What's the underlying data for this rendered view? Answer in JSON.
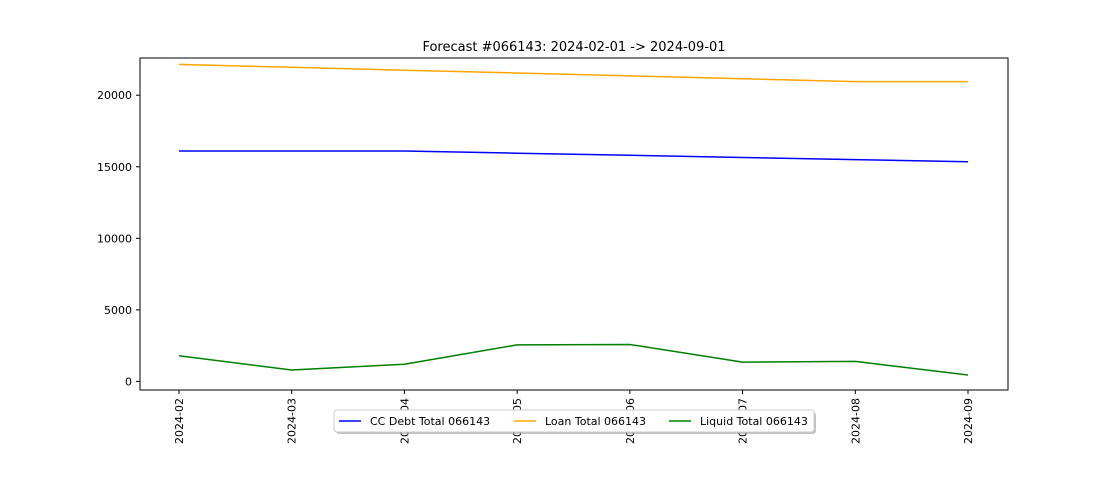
{
  "chart_data": {
    "type": "line",
    "title": "Forecast #066143: 2024-02-01 -> 2024-09-01",
    "xlabel": "",
    "ylabel": "",
    "x": [
      "2024-02",
      "2024-03",
      "2024-04",
      "2024-05",
      "2024-06",
      "2024-07",
      "2024-08",
      "2024-09"
    ],
    "x_tick_labels": [
      "2024-02",
      "2024-03",
      "2024-04",
      "2024-05",
      "2024-06",
      "2024-07",
      "2024-08",
      "2024-09"
    ],
    "y_ticks": [
      0,
      5000,
      10000,
      15000,
      20000
    ],
    "y_tick_labels": [
      "0",
      "5000",
      "10000",
      "15000",
      "20000"
    ],
    "ylim": [
      -600,
      22600
    ],
    "grid": false,
    "legend_position": "bottom-center",
    "series": [
      {
        "name": "CC Debt Total 066143",
        "color": "#0000ff",
        "values": [
          16100,
          16100,
          16100,
          15950,
          15800,
          15650,
          15500,
          15350
        ]
      },
      {
        "name": "Loan Total 066143",
        "color": "#ffa500",
        "values": [
          22150,
          21950,
          21750,
          21550,
          21350,
          21150,
          20950,
          20950
        ]
      },
      {
        "name": "Liquid Total 066143",
        "color": "#008000",
        "values": [
          1800,
          800,
          1200,
          2550,
          2580,
          1350,
          1400,
          450
        ]
      }
    ]
  }
}
